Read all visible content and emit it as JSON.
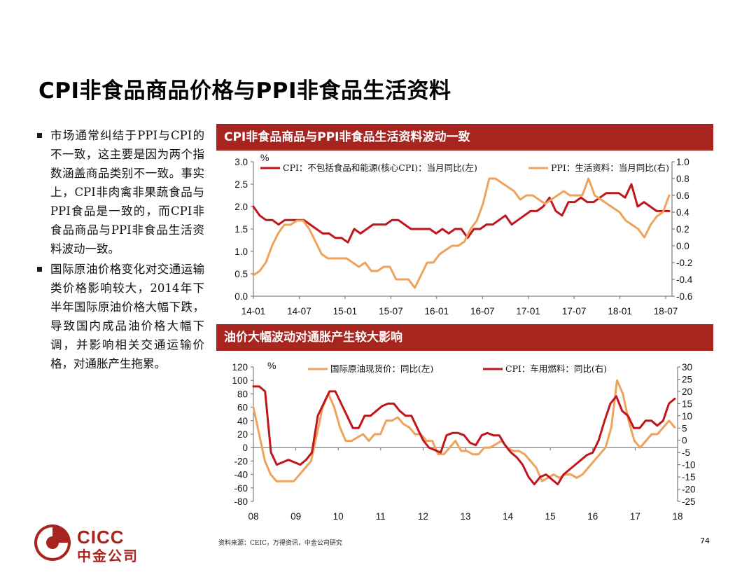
{
  "page": {
    "title": "CPI非食品商品价格与PPI非食品生活资料",
    "bullets": [
      "市场通常纠结于PPI与CPI的不一致，这主要是因为两个指数涵盖商品类别不一致。事实上，CPI非肉禽非果蔬食品与PPI食品是一致的，而CPI非食品商品与PPI非食品生活资料波动一致。",
      "国际原油价格变化对交通运输类价格影响较大，2014年下半年国际原油价格大幅下跌，导致国内成品油价格大幅下调，并影响相关交通运输价格，对通胀产生拖累。"
    ],
    "source": "资料来源：CEIC，万得资讯，中金公司研究",
    "page_number": "74"
  },
  "logo": {
    "en": "CICC",
    "cn": "中金公司"
  },
  "colors": {
    "accent": "#a8251f",
    "red": "#c0161b",
    "orange": "#eea25b"
  },
  "chart_data": [
    {
      "type": "line",
      "header": "CPI非食品商品与PPI非食品生活资料波动一致",
      "unit_label": "%",
      "x_ticks": [
        "14-01",
        "14-07",
        "15-01",
        "15-07",
        "16-01",
        "16-07",
        "17-01",
        "17-07",
        "18-01",
        "18-07"
      ],
      "y_left": {
        "ticks": [
          "3.0",
          "2.5",
          "2.0",
          "1.5",
          "1.0",
          "0.5",
          "0.0"
        ],
        "range": [
          0,
          3
        ]
      },
      "y_right": {
        "ticks": [
          "1.0",
          "0.8",
          "0.6",
          "0.4",
          "0.2",
          "0.0",
          "-0.2",
          "-0.4",
          "-0.6"
        ],
        "range": [
          -0.6,
          1.0
        ]
      },
      "series": [
        {
          "name": "CPI：不包括食品和能源(核心CPI)：当月同比(左)",
          "axis": "left",
          "color": "#c0161b",
          "values": [
            2.0,
            1.8,
            1.7,
            1.7,
            1.6,
            1.7,
            1.7,
            1.7,
            1.7,
            1.6,
            1.5,
            1.4,
            1.4,
            1.3,
            1.3,
            1.2,
            1.5,
            1.4,
            1.5,
            1.6,
            1.6,
            1.6,
            1.7,
            1.7,
            1.6,
            1.5,
            1.5,
            1.5,
            1.5,
            1.4,
            1.5,
            1.4,
            1.5,
            1.5,
            1.3,
            1.5,
            1.5,
            1.6,
            1.6,
            1.7,
            1.8,
            1.6,
            1.7,
            1.8,
            1.9,
            1.9,
            2.0,
            2.2,
            1.9,
            1.8,
            2.1,
            2.1,
            2.2,
            2.1,
            2.1,
            2.2,
            2.3,
            2.3,
            2.3,
            2.2,
            2.5,
            2.0,
            2.1,
            2.0,
            1.9,
            1.9,
            1.9
          ]
        },
        {
          "name": "PPI：生活资料：当月同比(右)",
          "axis": "right",
          "color": "#eea25b",
          "values": [
            -0.35,
            -0.3,
            -0.2,
            0.0,
            0.15,
            0.25,
            0.25,
            0.3,
            0.3,
            0.2,
            0.05,
            -0.1,
            -0.15,
            -0.15,
            -0.15,
            -0.15,
            -0.2,
            -0.25,
            -0.2,
            -0.3,
            -0.3,
            -0.25,
            -0.25,
            -0.4,
            -0.4,
            -0.4,
            -0.5,
            -0.35,
            -0.2,
            -0.2,
            -0.1,
            -0.05,
            0.0,
            0.0,
            0.05,
            0.2,
            0.3,
            0.5,
            0.8,
            0.8,
            0.75,
            0.7,
            0.65,
            0.55,
            0.6,
            0.6,
            0.55,
            0.5,
            0.55,
            0.6,
            0.65,
            0.6,
            0.6,
            0.6,
            0.8,
            0.6,
            0.55,
            0.5,
            0.45,
            0.4,
            0.3,
            0.25,
            0.2,
            0.1,
            0.25,
            0.35,
            0.4,
            0.6
          ]
        }
      ]
    },
    {
      "type": "line",
      "header": "油价大幅波动对通胀产生较大影响",
      "unit_label": "%",
      "x_ticks": [
        "08",
        "09",
        "10",
        "11",
        "12",
        "13",
        "14",
        "15",
        "16",
        "17",
        "18"
      ],
      "y_left": {
        "ticks": [
          "120",
          "100",
          "80",
          "60",
          "40",
          "20",
          "0",
          "-20",
          "-40",
          "-60",
          "-80"
        ],
        "range": [
          -80,
          120
        ]
      },
      "y_right": {
        "ticks": [
          "30",
          "25",
          "20",
          "15",
          "10",
          "5",
          "0",
          "-5",
          "-10",
          "-15",
          "-20",
          "-25"
        ],
        "range": [
          -25,
          30
        ]
      },
      "series": [
        {
          "name": "国际原油现货价：同比(左)",
          "axis": "left",
          "color": "#eea25b",
          "values": [
            60,
            20,
            -20,
            -40,
            -50,
            -50,
            -50,
            -50,
            -40,
            -30,
            -20,
            20,
            60,
            80,
            60,
            30,
            10,
            10,
            15,
            20,
            10,
            20,
            20,
            40,
            40,
            45,
            35,
            30,
            20,
            20,
            10,
            10,
            -10,
            -10,
            0,
            10,
            -5,
            -5,
            -10,
            -10,
            0,
            0,
            5,
            10,
            0,
            -5,
            -5,
            -10,
            -20,
            -30,
            -50,
            -45,
            -40,
            -45,
            -40,
            -40,
            -45,
            -40,
            -30,
            -20,
            -10,
            0,
            30,
            100,
            80,
            40,
            10,
            0,
            10,
            20,
            20,
            30,
            40,
            30
          ]
        },
        {
          "name": "CPI：车用燃料：同比(右)",
          "axis": "right",
          "color": "#c0161b",
          "values": [
            22,
            22,
            20,
            -5,
            -10,
            -9,
            -8,
            -9,
            -10,
            -8,
            -5,
            10,
            15,
            20,
            20,
            15,
            10,
            5,
            5,
            10,
            10,
            12,
            14,
            15,
            15,
            12,
            10,
            10,
            5,
            0,
            -3,
            -4,
            -5,
            2,
            3,
            3,
            2,
            -1,
            -2,
            2,
            3,
            2,
            2,
            -2,
            -5,
            -7,
            -10,
            -15,
            -18,
            -15,
            -14,
            -16,
            -18,
            -14,
            -12,
            -10,
            -8,
            -6,
            -5,
            0,
            8,
            15,
            18,
            12,
            10,
            5,
            5,
            8,
            8,
            6,
            8,
            15,
            17
          ]
        }
      ]
    }
  ]
}
